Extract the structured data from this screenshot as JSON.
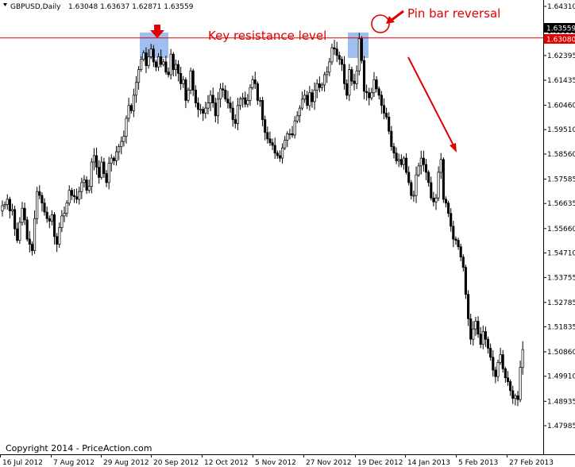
{
  "header": {
    "symbol": "GBPUSD,Daily",
    "ohlc": "1.63048 1.63637 1.62871 1.63559"
  },
  "copyright": "Copyright 2014 - PriceAction.com",
  "annotations": {
    "resistance_label": "Key resistance level",
    "pin_bar_label": "Pin bar reversal"
  },
  "chart_data": {
    "type": "candlestick",
    "price_axis": {
      "min": 1.47985,
      "max": 1.6431,
      "ticks": [
        "1.64310",
        "1.63355",
        "1.62395",
        "1.61435",
        "1.60460",
        "1.59510",
        "1.58560",
        "1.57585",
        "1.56635",
        "1.55660",
        "1.54710",
        "1.53755",
        "1.52785",
        "1.51835",
        "1.50860",
        "1.49910",
        "1.48935",
        "1.47985"
      ]
    },
    "date_axis": [
      "16 Jul 2012",
      "7 Aug 2012",
      "29 Aug 2012",
      "20 Sep 2012",
      "12 Oct 2012",
      "5 Nov 2012",
      "27 Nov 2012",
      "19 Dec 2012",
      "14 Jan 2013",
      "5 Feb 2013",
      "27 Feb 2013"
    ],
    "current_price": "1.63559",
    "resistance_price": "1.63080",
    "resistance_level": 1.6308,
    "colors": {
      "candle": "#000000",
      "bull_body": "#ffffff",
      "bear_body": "#000000",
      "resistance_line": "#e00000",
      "highlight": "#8fb4ee",
      "annotation": "#e00000"
    },
    "closes": [
      1.5655,
      1.566,
      1.568,
      1.5635,
      1.564,
      1.5565,
      1.552,
      1.559,
      1.5645,
      1.56,
      1.5525,
      1.5505,
      1.548,
      1.5605,
      1.571,
      1.5695,
      1.5665,
      1.563,
      1.5605,
      1.5595,
      1.562,
      1.5535,
      1.5505,
      1.557,
      1.5615,
      1.5625,
      1.5665,
      1.5715,
      1.5695,
      1.569,
      1.568,
      1.571,
      1.5745,
      1.5755,
      1.5715,
      1.573,
      1.5825,
      1.585,
      1.5805,
      1.5765,
      1.5825,
      1.578,
      1.5745,
      1.582,
      1.584,
      1.583,
      1.5865,
      1.5885,
      1.5905,
      1.5925,
      1.5995,
      1.6045,
      1.6025,
      1.6085,
      1.6135,
      1.6185,
      1.6225,
      1.625,
      1.62,
      1.6235,
      1.6265,
      1.6215,
      1.6195,
      1.6235,
      1.6205,
      1.6215,
      1.6175,
      1.6165,
      1.6245,
      1.6185,
      1.6205,
      1.617,
      1.613,
      1.6145,
      1.6065,
      1.6105,
      1.618,
      1.6105,
      1.6055,
      1.603,
      1.603,
      1.6015,
      1.6035,
      1.6055,
      1.6085,
      1.6055,
      1.6005,
      1.607,
      1.611,
      1.6105,
      1.607,
      1.6055,
      1.6035,
      1.599,
      1.5975,
      1.6045,
      1.607,
      1.6075,
      1.605,
      1.6065,
      1.6115,
      1.6145,
      1.613,
      1.6065,
      1.6065,
      1.599,
      1.594,
      1.5915,
      1.59,
      1.589,
      1.586,
      1.585,
      1.584,
      1.588,
      1.591,
      1.5935,
      1.5935,
      1.593,
      1.5985,
      1.6005,
      1.6035,
      1.607,
      1.6085,
      1.6045,
      1.6095,
      1.606,
      1.6105,
      1.613,
      1.6115,
      1.6125,
      1.6165,
      1.6175,
      1.6215,
      1.627,
      1.6265,
      1.624,
      1.6225,
      1.6205,
      1.613,
      1.6085,
      1.6185,
      1.614,
      1.613,
      1.618,
      1.6305,
      1.622,
      1.61,
      1.6095,
      1.6075,
      1.6095,
      1.6145,
      1.611,
      1.6085,
      1.6045,
      1.6015,
      1.6,
      1.5945,
      1.5885,
      1.586,
      1.583,
      1.5835,
      1.5815,
      1.584,
      1.5785,
      1.5745,
      1.5695,
      1.5695,
      1.5775,
      1.581,
      1.584,
      1.5815,
      1.5785,
      1.5745,
      1.5685,
      1.567,
      1.5685,
      1.5785,
      1.5835,
      1.568,
      1.5665,
      1.5625,
      1.5575,
      1.5525,
      1.552,
      1.5495,
      1.5455,
      1.5415,
      1.531,
      1.5215,
      1.5135,
      1.5175,
      1.5205,
      1.5155,
      1.5115,
      1.5165,
      1.5135,
      1.51,
      1.5065,
      1.5015,
      1.499,
      1.5045,
      1.5075,
      1.502,
      1.4985,
      1.497,
      1.4935,
      1.4905,
      1.4915,
      1.49,
      1.5025,
      1.5095
    ]
  }
}
